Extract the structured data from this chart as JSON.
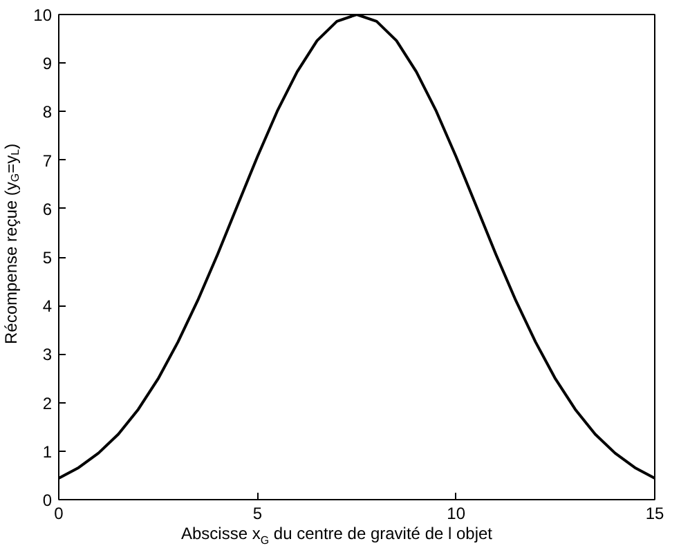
{
  "chart_data": {
    "type": "line",
    "xlabel": "Abscisse x$_{G}$ du centre de gravité de l objet",
    "ylabel": "Récompense reçue (y$_{G}$=y$_{L}$)",
    "x": [
      0,
      0.5,
      1,
      1.5,
      2,
      2.5,
      3,
      3.5,
      4,
      4.5,
      5,
      5.5,
      6,
      6.5,
      7,
      7.5,
      8,
      8.5,
      9,
      9.5,
      10,
      10.5,
      11,
      11.5,
      12,
      12.5,
      13,
      13.5,
      14,
      14.5,
      15
    ],
    "series": [
      {
        "color": "#000000",
        "values": [
          0.44,
          0.66,
          0.96,
          1.35,
          1.86,
          2.49,
          3.25,
          4.11,
          5.06,
          6.07,
          7.07,
          8.01,
          8.82,
          9.46,
          9.86,
          10,
          9.86,
          9.46,
          8.82,
          8.01,
          7.07,
          6.07,
          5.06,
          4.11,
          3.25,
          2.49,
          1.86,
          1.35,
          0.96,
          0.66,
          0.44
        ]
      }
    ],
    "xlim": [
      0,
      15
    ],
    "ylim": [
      0,
      10
    ],
    "xticks": [
      0,
      5,
      10,
      15
    ],
    "yticks": [
      0,
      1,
      2,
      3,
      4,
      5,
      6,
      7,
      8,
      9,
      10
    ],
    "grid": false,
    "marker": "none",
    "line_style": "solid"
  }
}
